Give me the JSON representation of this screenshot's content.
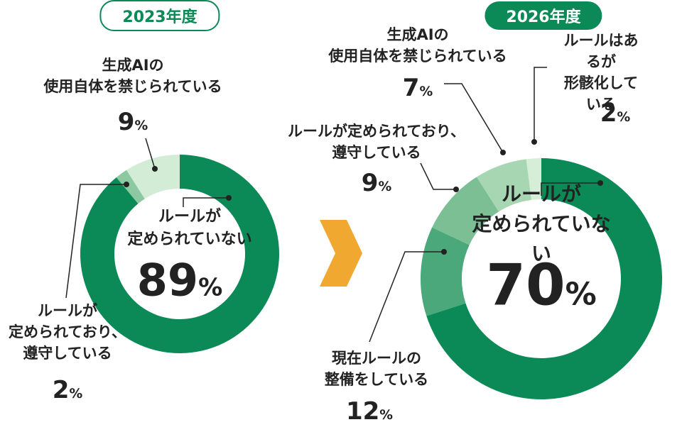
{
  "chart_data": [
    {
      "type": "donut",
      "title": "2023年度",
      "categories": [
        "ルールが\n定められていない",
        "ルールが\n定められており、\n遵守している",
        "生成AIの\n使用自体を禁じられている"
      ],
      "values": [
        89,
        2,
        9
      ],
      "value_labels": [
        "89%",
        "2%",
        "9%"
      ],
      "colors": [
        "#0b8a57",
        "#8cc8a0",
        "#d3ecd5"
      ]
    },
    {
      "type": "donut",
      "title": "2026年度",
      "categories": [
        "ルールが\n定められていない",
        "現在ルールの\n整備をしている",
        "ルールが定められており、\n遵守している",
        "生成AIの\n使用自体を禁じられている",
        "ルールはあるが\n形骸化している"
      ],
      "values": [
        70,
        12,
        9,
        7,
        2
      ],
      "value_labels": [
        "70%",
        "12%",
        "9%",
        "7%",
        "2%"
      ],
      "colors": [
        "#0b8a57",
        "#4aa87a",
        "#7dbf95",
        "#a7d6b2",
        "#d6eed8"
      ]
    }
  ]
}
